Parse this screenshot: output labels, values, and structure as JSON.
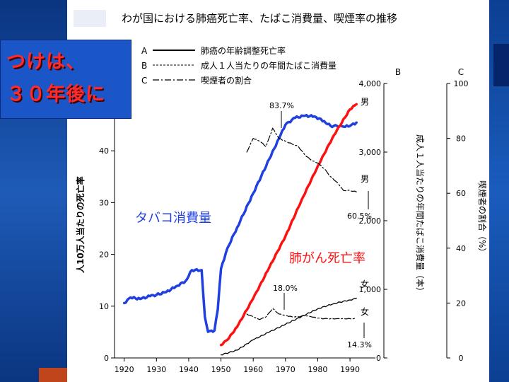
{
  "overlay": {
    "line1": "つけは、",
    "line2": "３０年後に"
  },
  "chart_data": {
    "type": "line",
    "title": "わが国における肺癌死亡率、たばこ消費量、喫煙率の推移",
    "legend": [
      {
        "key": "A",
        "label": "肺癌の年齢調整死亡率",
        "style": "solid"
      },
      {
        "key": "B",
        "label": "成人１人当たりの年間たばこ消費量",
        "style": "dashed"
      },
      {
        "key": "C",
        "label": "喫煙者の割合",
        "style": "dash-dot"
      }
    ],
    "x_ticks": [
      "1920",
      "1930",
      "1940",
      "1950",
      "1960",
      "1970",
      "1980",
      "1990"
    ],
    "xlim": [
      1917,
      1997
    ],
    "axes": {
      "left": {
        "label": "人10万人当たりの死亡率",
        "ticks": [
          "0",
          "10",
          "20",
          "30",
          "40"
        ],
        "ylim": [
          0,
          53
        ]
      },
      "B": {
        "header": "B",
        "label": "成人１人当たりの年間たばこ消費量（本）",
        "ticks": [
          "0",
          "1,000",
          "2,000",
          "3,000",
          "4,000"
        ],
        "ylim": [
          0,
          4000
        ]
      },
      "C": {
        "header": "C",
        "label": "喫煙者の割合（%）",
        "ticks": [
          "0",
          "20",
          "40",
          "60",
          "80",
          "100"
        ],
        "ylim": [
          0,
          100
        ]
      }
    },
    "series": [
      {
        "name": "タバコ消費量",
        "axis": "B",
        "color": "#1f3fe0",
        "points": [
          [
            1920,
            800
          ],
          [
            1922,
            880
          ],
          [
            1925,
            860
          ],
          [
            1928,
            900
          ],
          [
            1930,
            920
          ],
          [
            1933,
            960
          ],
          [
            1936,
            1040
          ],
          [
            1939,
            1120
          ],
          [
            1941,
            1280
          ],
          [
            1944,
            1280
          ],
          [
            1945,
            600
          ],
          [
            1946,
            380
          ],
          [
            1948,
            400
          ],
          [
            1949,
            700
          ],
          [
            1950,
            1300
          ],
          [
            1952,
            1600
          ],
          [
            1955,
            1900
          ],
          [
            1960,
            2400
          ],
          [
            1965,
            2900
          ],
          [
            1968,
            3200
          ],
          [
            1970,
            3400
          ],
          [
            1973,
            3500
          ],
          [
            1976,
            3530
          ],
          [
            1979,
            3520
          ],
          [
            1982,
            3450
          ],
          [
            1984,
            3380
          ],
          [
            1986,
            3380
          ],
          [
            1988,
            3370
          ],
          [
            1990,
            3380
          ],
          [
            1992,
            3430
          ]
        ]
      },
      {
        "name": "肺がん死亡率",
        "axis": "left",
        "color": "#ff1010",
        "points": [
          [
            1950,
            2.5
          ],
          [
            1952,
            3.5
          ],
          [
            1955,
            6
          ],
          [
            1960,
            11.5
          ],
          [
            1965,
            17.5
          ],
          [
            1970,
            23.5
          ],
          [
            1975,
            30.5
          ],
          [
            1980,
            37
          ],
          [
            1985,
            43
          ],
          [
            1990,
            48
          ],
          [
            1992,
            49
          ]
        ]
      },
      {
        "name": "肺癌の年齢調整死亡率（女）",
        "axis": "left",
        "color": "#000000",
        "points": [
          [
            1950,
            0.6
          ],
          [
            1955,
            1.5
          ],
          [
            1960,
            3.5
          ],
          [
            1965,
            5
          ],
          [
            1970,
            6.5
          ],
          [
            1975,
            8
          ],
          [
            1980,
            9.5
          ],
          [
            1985,
            10.5
          ],
          [
            1990,
            11.2
          ],
          [
            1992,
            11.5
          ]
        ]
      },
      {
        "name": "喫煙者の割合（男）",
        "axis": "C",
        "color": "#000000",
        "points": [
          [
            1958,
            75
          ],
          [
            1960,
            80
          ],
          [
            1962,
            79
          ],
          [
            1964,
            77
          ],
          [
            1966,
            83.7
          ],
          [
            1968,
            80
          ],
          [
            1970,
            79
          ],
          [
            1972,
            78
          ],
          [
            1974,
            77
          ],
          [
            1976,
            74
          ],
          [
            1978,
            72
          ],
          [
            1980,
            71
          ],
          [
            1982,
            69
          ],
          [
            1984,
            66
          ],
          [
            1986,
            64
          ],
          [
            1988,
            61
          ],
          [
            1990,
            61
          ],
          [
            1992,
            60.5
          ]
        ]
      },
      {
        "name": "喫煙者の割合（女）",
        "axis": "C",
        "color": "#000000",
        "points": [
          [
            1958,
            16
          ],
          [
            1960,
            15
          ],
          [
            1962,
            14
          ],
          [
            1964,
            15
          ],
          [
            1966,
            18
          ],
          [
            1968,
            16
          ],
          [
            1970,
            15.5
          ],
          [
            1972,
            15
          ],
          [
            1974,
            15
          ],
          [
            1976,
            15.5
          ],
          [
            1978,
            15
          ],
          [
            1980,
            14.5
          ],
          [
            1982,
            14.3
          ],
          [
            1984,
            14.3
          ],
          [
            1986,
            14.3
          ],
          [
            1988,
            14.3
          ],
          [
            1990,
            14.3
          ],
          [
            1992,
            14.3
          ]
        ]
      }
    ],
    "annotations": {
      "tobacco": "タバコ消費量",
      "lung_cancer": "肺がん死亡率",
      "male_top": "男",
      "male_mid": "男",
      "female_a": "女",
      "female_b": "女",
      "peak_male": "83.7%",
      "end_male": "60.5%",
      "peak_female": "18.0%",
      "end_female": "14.3%"
    }
  }
}
